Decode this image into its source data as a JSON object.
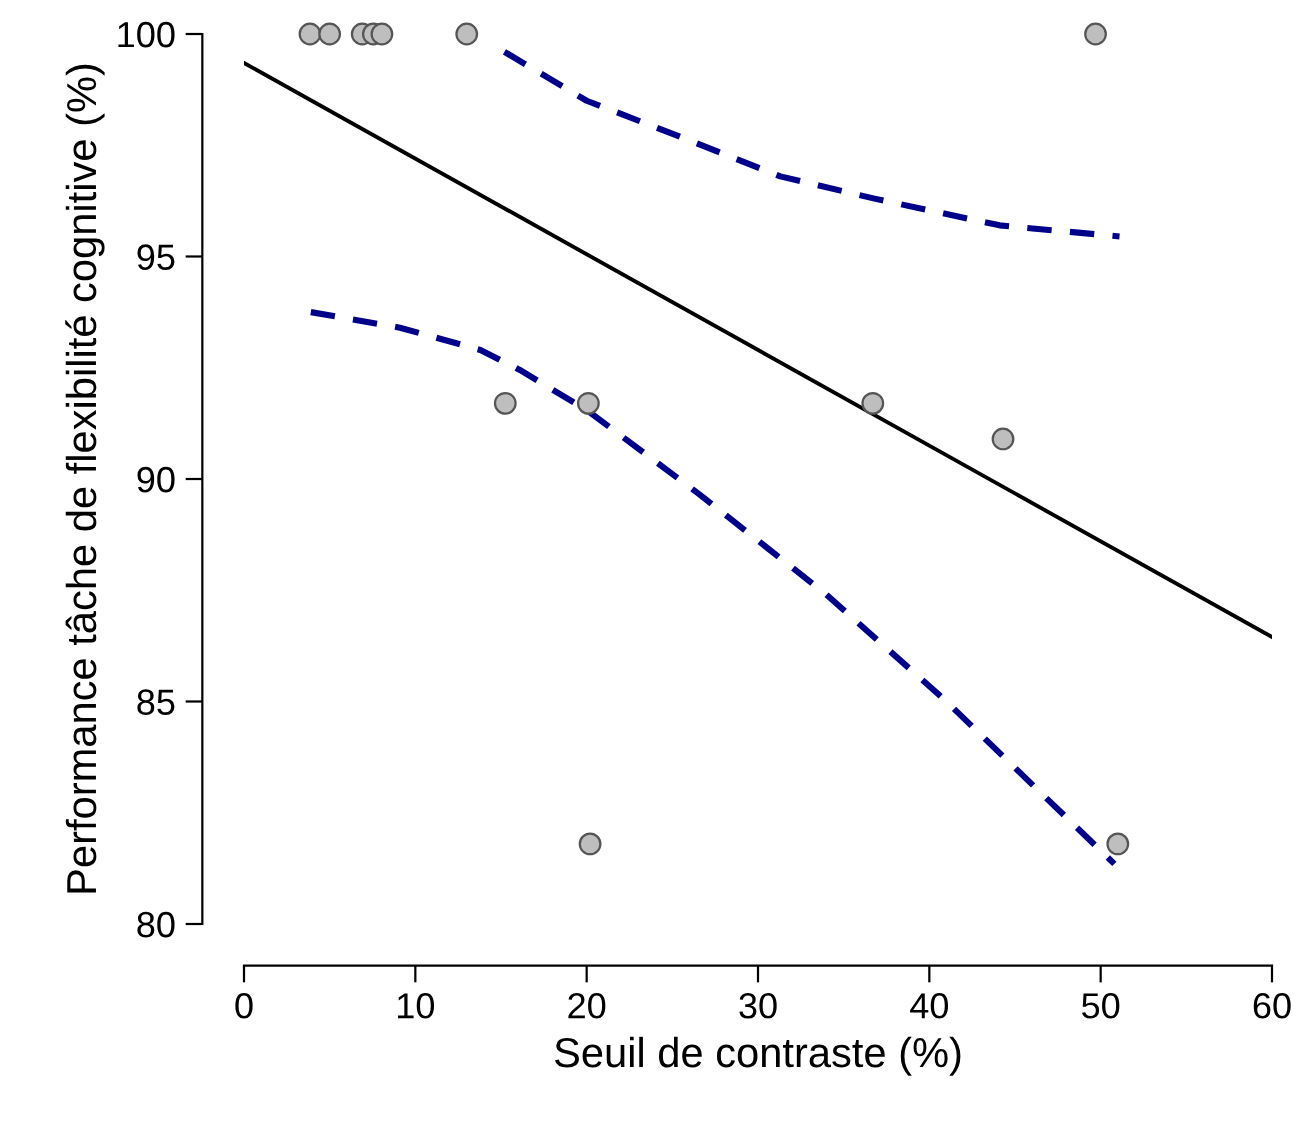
{
  "chart_data": {
    "type": "scatter",
    "xlabel": "Seuil de contraste (%)",
    "ylabel": "Performance tâche de flexibilité cognitive (%)",
    "xlim": [
      0,
      60
    ],
    "ylim": [
      80,
      100
    ],
    "xticks": [
      0,
      10,
      20,
      30,
      40,
      50,
      60
    ],
    "yticks": [
      80,
      85,
      90,
      95,
      100
    ],
    "grid": false,
    "legend": false,
    "series": [
      {
        "color": "#bebebe",
        "marker": "circle",
        "x": [
          3.85,
          5.0,
          6.9,
          7.55,
          8.05,
          13.0,
          49.7,
          15.25,
          20.1,
          36.7,
          44.3,
          20.2,
          51.0
        ],
        "values": [
          100,
          100,
          100,
          100,
          100,
          100,
          100,
          91.7,
          91.7,
          91.7,
          90.9,
          81.8,
          81.8
        ]
      },
      {
        "type": "line",
        "color": "#000000",
        "line_style": "solid",
        "x": [
          0,
          60
        ],
        "values": [
          99.35,
          86.45
        ]
      },
      {
        "type": "line",
        "color": "#00008b",
        "line_style": "dashed",
        "x": [
          15.2,
          20.0,
          25.4,
          31.3,
          36.8,
          44.1,
          51.1
        ],
        "values": [
          99.6,
          98.5,
          97.7,
          96.8,
          96.3,
          95.7,
          95.45
        ]
      },
      {
        "type": "line",
        "color": "#00008b",
        "line_style": "dashed",
        "x": [
          3.9,
          9.1,
          13.8,
          16.1,
          20.0,
          26.6,
          34.0,
          41.0,
          50.8
        ],
        "values": [
          93.75,
          93.4,
          92.9,
          92.45,
          91.55,
          89.65,
          87.4,
          85.0,
          81.35
        ]
      }
    ]
  }
}
